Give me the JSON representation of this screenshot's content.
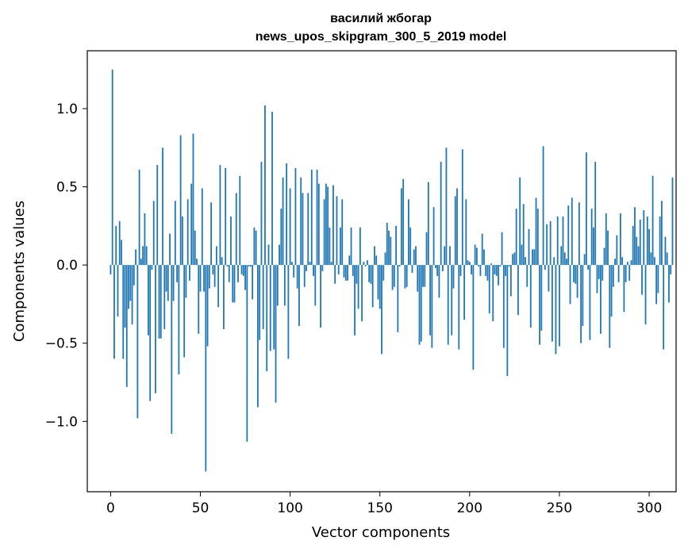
{
  "chart_data": {
    "type": "bar",
    "title_line1": "василий жбогар",
    "title_line2": "news_upos_skipgram_300_5_2019 model",
    "xlabel": "Vector components",
    "ylabel": "Components values",
    "xlim": [
      -13,
      315
    ],
    "ylim": [
      -1.45,
      1.37
    ],
    "xticks": [
      0,
      50,
      100,
      150,
      200,
      250,
      300
    ],
    "yticks": [
      1.0,
      0.5,
      0.0,
      -0.5,
      -1.0
    ],
    "ytick_labels": [
      "1.0",
      "0.5",
      "0.0",
      "−0.5",
      "−1.0"
    ],
    "grid": false,
    "bar_color": "#1f77b4",
    "values": [
      -0.06,
      1.25,
      -0.6,
      0.25,
      -0.33,
      0.28,
      0.16,
      -0.6,
      -0.4,
      -0.78,
      -0.28,
      -0.23,
      -0.38,
      -0.13,
      0.1,
      -0.98,
      0.61,
      0.04,
      0.12,
      0.33,
      0.12,
      -0.45,
      -0.87,
      -0.03,
      0.41,
      -0.82,
      0.64,
      -0.47,
      -0.47,
      0.75,
      -0.41,
      -0.17,
      -0.23,
      0.2,
      -1.08,
      -0.23,
      0.41,
      -0.11,
      -0.7,
      0.83,
      0.31,
      -0.59,
      -0.21,
      0.42,
      -0.1,
      0.52,
      0.84,
      0.22,
      0.04,
      -0.44,
      -0.17,
      0.49,
      -0.17,
      -1.32,
      -0.52,
      -0.15,
      0.4,
      -0.06,
      -0.14,
      0.12,
      -0.27,
      0.64,
      0.05,
      -0.41,
      0.62,
      -0.01,
      -0.11,
      0.31,
      -0.24,
      -0.24,
      0.46,
      -0.11,
      0.57,
      -0.06,
      -0.07,
      -0.16,
      -1.13,
      -0.01,
      -0.01,
      -0.22,
      0.24,
      0.22,
      -0.91,
      -0.48,
      0.66,
      -0.41,
      1.02,
      -0.68,
      0.13,
      -0.55,
      0.98,
      -0.54,
      -0.88,
      -0.26,
      0.13,
      0.36,
      0.56,
      -0.26,
      0.65,
      -0.6,
      0.49,
      0.02,
      -0.08,
      0.62,
      -0.15,
      -0.39,
      0.56,
      0.46,
      -0.14,
      -0.04,
      0.46,
      0.02,
      0.61,
      -0.07,
      -0.26,
      0.61,
      0.52,
      -0.4,
      -0.04,
      0.42,
      0.52,
      0.5,
      0.24,
      0.02,
      0.51,
      -0.12,
      0.44,
      -0.06,
      0.24,
      0.42,
      -0.08,
      -0.1,
      -0.1,
      0.06,
      0.24,
      -0.07,
      -0.45,
      -0.12,
      -0.28,
      0.24,
      -0.36,
      0.02,
      -0.01,
      0.03,
      -0.11,
      -0.12,
      -0.27,
      0.12,
      0.06,
      -0.22,
      -0.28,
      -0.57,
      -0.1,
      0.08,
      0.27,
      0.22,
      0.18,
      -0.16,
      -0.14,
      0.25,
      -0.43,
      -0.01,
      0.49,
      0.55,
      -0.15,
      -0.14,
      0.42,
      0.24,
      -0.05,
      0.1,
      0.12,
      -0.17,
      -0.51,
      -0.49,
      -0.14,
      -0.14,
      0.21,
      0.53,
      -0.45,
      -0.53,
      0.37,
      -0.02,
      -0.07,
      -0.21,
      0.66,
      -0.04,
      0.12,
      0.75,
      -0.51,
      0.12,
      -0.45,
      -0.15,
      0.44,
      0.49,
      -0.54,
      -0.07,
      0.74,
      -0.35,
      0.42,
      0.03,
      0.02,
      -0.06,
      -0.67,
      0.13,
      0.11,
      -0.01,
      -0.07,
      0.2,
      0.1,
      -0.07,
      -0.1,
      -0.31,
      0.01,
      -0.36,
      -0.06,
      -0.07,
      -0.13,
      -0.01,
      0.21,
      -0.53,
      -0.07,
      -0.71,
      -0.01,
      -0.2,
      0.07,
      0.08,
      0.36,
      -0.32,
      0.56,
      0.13,
      0.39,
      0.05,
      -0.14,
      0.23,
      -0.4,
      0.1,
      0.1,
      0.43,
      0.36,
      -0.51,
      -0.42,
      0.76,
      -0.03,
      0.26,
      -0.17,
      0.28,
      -0.49,
      0.05,
      -0.57,
      0.31,
      -0.52,
      0.12,
      0.31,
      0.08,
      0.04,
      0.38,
      -0.25,
      0.43,
      -0.11,
      -0.12,
      -0.21,
      0.4,
      -0.5,
      -0.39,
      0.07,
      0.72,
      -0.03,
      -0.48,
      0.36,
      0.24,
      0.66,
      -0.18,
      -0.09,
      -0.44,
      -0.1,
      0.11,
      0.33,
      0.22,
      -0.53,
      -0.33,
      -0.14,
      0.04,
      0.19,
      -0.11,
      0.33,
      0.05,
      -0.3,
      -0.11,
      0.02,
      -0.1,
      0.03,
      0.25,
      0.37,
      0.18,
      0.12,
      0.29,
      -0.19,
      0.35,
      -0.38,
      0.31,
      0.23,
      0.08,
      0.57,
      0.05,
      -0.25,
      -0.18,
      0.31,
      0.41,
      -0.54,
      0.18,
      0.08,
      -0.24,
      -0.06,
      0.56
    ]
  }
}
